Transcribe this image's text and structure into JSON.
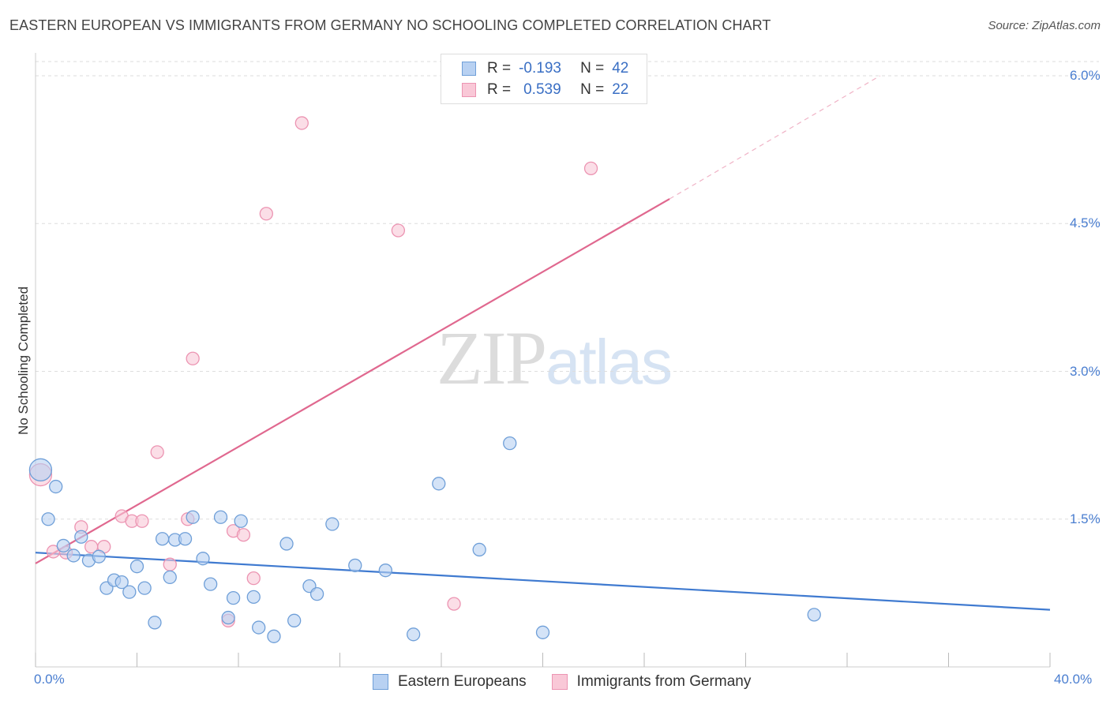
{
  "title": "EASTERN EUROPEAN VS IMMIGRANTS FROM GERMANY NO SCHOOLING COMPLETED CORRELATION CHART",
  "source": "Source: ZipAtlas.com",
  "watermark": {
    "part1": "ZIP",
    "part2": "atlas"
  },
  "legend": {
    "rows": [
      {
        "r_label": "R =",
        "r_value": "-0.193",
        "n_label": "N =",
        "n_value": "42"
      },
      {
        "r_label": "R =",
        "r_value": "0.539",
        "n_label": "N =",
        "n_value": "22"
      }
    ]
  },
  "bottom_legend": {
    "series1": "Eastern Europeans",
    "series2": "Immigrants from Germany"
  },
  "colors": {
    "blue_fill": "#b8d1f2",
    "blue_stroke": "#6f9fd8",
    "blue_line": "#3f7ad0",
    "pink_fill": "#f9c8d7",
    "pink_stroke": "#ec94b2",
    "pink_line": "#e0688f",
    "tick_label": "#4a7ed0",
    "grid": "#dddddd"
  },
  "chart_data": {
    "type": "scatter",
    "title": "EASTERN EUROPEAN VS IMMIGRANTS FROM GERMANY NO SCHOOLING COMPLETED CORRELATION CHART",
    "xlabel": "",
    "ylabel": "No Schooling Completed",
    "xlim": [
      0,
      40
    ],
    "ylim": [
      0,
      6.2
    ],
    "x_tick_labels": [
      "0.0%",
      "40.0%"
    ],
    "y_ticks": [
      1.5,
      3.0,
      4.5,
      6.0
    ],
    "y_tick_labels": [
      "1.5%",
      "3.0%",
      "4.5%",
      "6.0%"
    ],
    "grid": true,
    "series": [
      {
        "name": "Eastern Europeans",
        "r": -0.193,
        "n": 42,
        "points": [
          {
            "x": 0.2,
            "y": 2.0,
            "big": true
          },
          {
            "x": 0.5,
            "y": 1.5
          },
          {
            "x": 0.8,
            "y": 1.83
          },
          {
            "x": 1.1,
            "y": 1.23
          },
          {
            "x": 1.5,
            "y": 1.13
          },
          {
            "x": 1.8,
            "y": 1.32
          },
          {
            "x": 2.1,
            "y": 1.08
          },
          {
            "x": 2.5,
            "y": 1.12
          },
          {
            "x": 2.8,
            "y": 0.8
          },
          {
            "x": 3.1,
            "y": 0.88
          },
          {
            "x": 3.4,
            "y": 0.86
          },
          {
            "x": 3.7,
            "y": 0.76
          },
          {
            "x": 4.0,
            "y": 1.02
          },
          {
            "x": 4.3,
            "y": 0.8
          },
          {
            "x": 4.7,
            "y": 0.45
          },
          {
            "x": 5.0,
            "y": 1.3
          },
          {
            "x": 5.3,
            "y": 0.91
          },
          {
            "x": 5.5,
            "y": 1.29
          },
          {
            "x": 5.9,
            "y": 1.3
          },
          {
            "x": 6.2,
            "y": 1.52
          },
          {
            "x": 6.6,
            "y": 1.1
          },
          {
            "x": 6.9,
            "y": 0.84
          },
          {
            "x": 7.3,
            "y": 1.52
          },
          {
            "x": 7.6,
            "y": 0.5
          },
          {
            "x": 7.8,
            "y": 0.7
          },
          {
            "x": 8.1,
            "y": 1.48
          },
          {
            "x": 8.6,
            "y": 0.71
          },
          {
            "x": 8.8,
            "y": 0.4
          },
          {
            "x": 9.4,
            "y": 0.31
          },
          {
            "x": 9.9,
            "y": 1.25
          },
          {
            "x": 10.2,
            "y": 0.47
          },
          {
            "x": 10.8,
            "y": 0.82
          },
          {
            "x": 11.1,
            "y": 0.74
          },
          {
            "x": 11.7,
            "y": 1.45
          },
          {
            "x": 12.6,
            "y": 1.03
          },
          {
            "x": 13.8,
            "y": 0.98
          },
          {
            "x": 14.9,
            "y": 0.33
          },
          {
            "x": 15.9,
            "y": 1.86
          },
          {
            "x": 17.5,
            "y": 1.19
          },
          {
            "x": 18.7,
            "y": 2.27
          },
          {
            "x": 20.0,
            "y": 0.35
          },
          {
            "x": 30.7,
            "y": 0.53
          }
        ],
        "trend": {
          "x0": 0,
          "y0": 1.16,
          "x1": 40,
          "y1": 0.58
        }
      },
      {
        "name": "Immigrants from Germany",
        "r": 0.539,
        "n": 22,
        "points": [
          {
            "x": 0.2,
            "y": 1.95,
            "big": true
          },
          {
            "x": 0.7,
            "y": 1.17
          },
          {
            "x": 1.2,
            "y": 1.16
          },
          {
            "x": 1.8,
            "y": 1.42
          },
          {
            "x": 2.2,
            "y": 1.22
          },
          {
            "x": 2.7,
            "y": 1.22
          },
          {
            "x": 3.4,
            "y": 1.53
          },
          {
            "x": 3.8,
            "y": 1.48
          },
          {
            "x": 4.2,
            "y": 1.48
          },
          {
            "x": 4.8,
            "y": 2.18
          },
          {
            "x": 5.3,
            "y": 1.04
          },
          {
            "x": 6.0,
            "y": 1.5
          },
          {
            "x": 6.2,
            "y": 3.13
          },
          {
            "x": 7.8,
            "y": 1.38
          },
          {
            "x": 7.6,
            "y": 0.47
          },
          {
            "x": 8.2,
            "y": 1.34
          },
          {
            "x": 8.6,
            "y": 0.9
          },
          {
            "x": 9.1,
            "y": 4.6
          },
          {
            "x": 10.5,
            "y": 5.52
          },
          {
            "x": 14.3,
            "y": 4.43
          },
          {
            "x": 16.5,
            "y": 0.64
          },
          {
            "x": 21.9,
            "y": 5.06
          }
        ],
        "trend": {
          "x0": 0,
          "y0": 1.05,
          "x1": 25,
          "y1": 4.75
        },
        "trend_dashed_to": {
          "x": 33.3,
          "y": 6.0
        }
      }
    ]
  }
}
